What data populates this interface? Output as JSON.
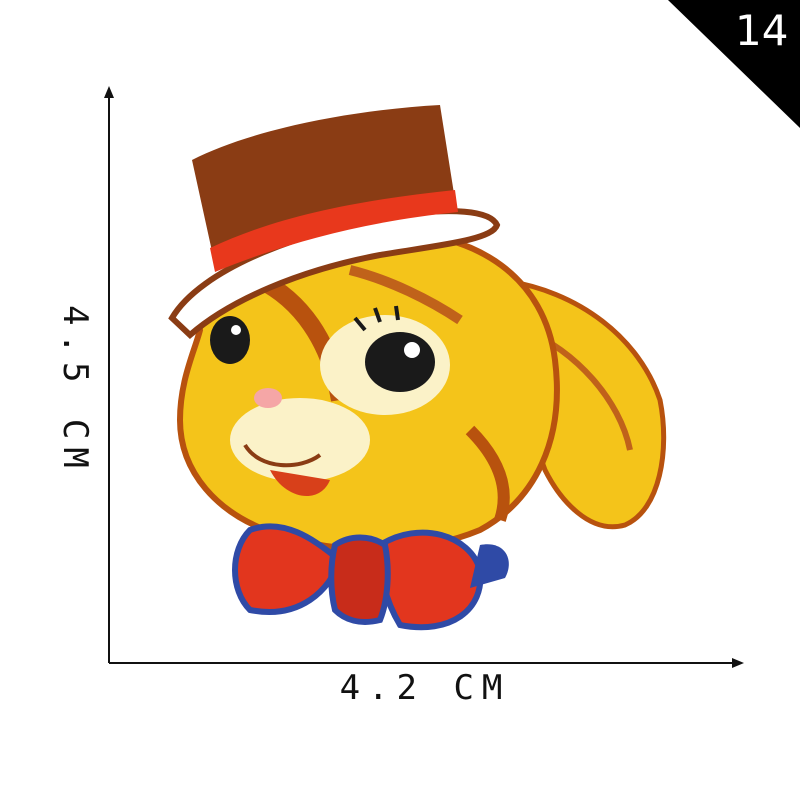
{
  "badge": {
    "number": "14",
    "background": "#000000",
    "text_color": "#ffffff"
  },
  "dimensions": {
    "width_label": "4.2 CM",
    "height_label": "4.5 CM"
  },
  "product": {
    "subject": "embroidered rabbit patch",
    "colors": {
      "hat": "#8a3c14",
      "hat_band": "#e8381c",
      "fur": "#f4c41a",
      "fur_dark": "#b8520e",
      "bow": "#e2361e",
      "bow_trim": "#2f4aa6"
    }
  }
}
